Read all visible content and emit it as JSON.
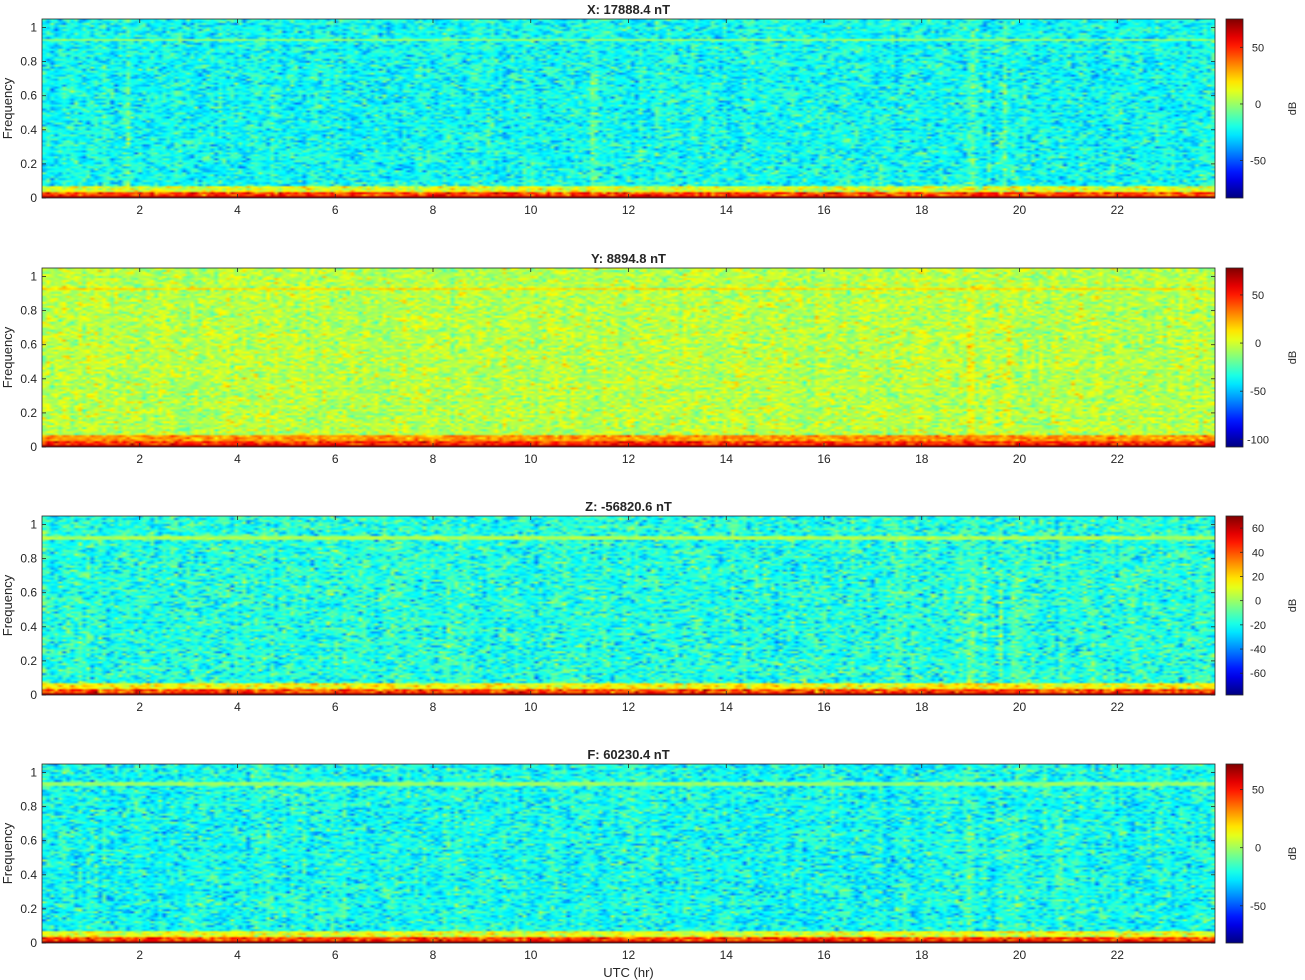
{
  "chart_data": [
    {
      "type": "heatmap",
      "title": "X: 17888.4 nT",
      "xlabel": "",
      "ylabel": "Frequency",
      "xlim": [
        0,
        24
      ],
      "ylim": [
        0,
        1.05
      ],
      "xticks": [
        2,
        4,
        6,
        8,
        10,
        12,
        14,
        16,
        18,
        20,
        22
      ],
      "yticks": [
        0,
        0.2,
        0.4,
        0.6,
        0.8,
        1
      ],
      "colorbar": {
        "label": "dB",
        "range": [
          -83,
          75
        ],
        "ticks": [
          -50,
          0,
          50
        ]
      },
      "pattern": {
        "base_level": -22,
        "bottom_band_max": 75,
        "tone_frequency": 0.925,
        "bright_times": [
          1.75,
          11.3,
          19.0,
          19.4,
          19.7
        ]
      }
    },
    {
      "type": "heatmap",
      "title": "Y: 8894.8 nT",
      "xlabel": "",
      "ylabel": "Frequency",
      "xlim": [
        0,
        24
      ],
      "ylim": [
        0,
        1.05
      ],
      "xticks": [
        2,
        4,
        6,
        8,
        10,
        12,
        14,
        16,
        18,
        20,
        22
      ],
      "yticks": [
        0,
        0.2,
        0.4,
        0.6,
        0.8,
        1
      ],
      "colorbar": {
        "label": "dB",
        "range": [
          -108,
          78
        ],
        "ticks": [
          -100,
          -50,
          0,
          50
        ]
      },
      "pattern": {
        "base_level": -5,
        "bottom_band_max": 78,
        "tone_frequency": 0.925,
        "bright_times": [
          11.5,
          19.0,
          19.4,
          19.8
        ]
      }
    },
    {
      "type": "heatmap",
      "title": "Z: -56820.6 nT",
      "xlabel": "",
      "ylabel": "Frequency",
      "xlim": [
        0,
        24
      ],
      "ylim": [
        0,
        1.05
      ],
      "xticks": [
        2,
        4,
        6,
        8,
        10,
        12,
        14,
        16,
        18,
        20,
        22
      ],
      "yticks": [
        0,
        0.2,
        0.4,
        0.6,
        0.8,
        1
      ],
      "colorbar": {
        "label": "dB",
        "range": [
          -78,
          70
        ],
        "ticks": [
          -60,
          -40,
          -20,
          0,
          20,
          40,
          60
        ]
      },
      "pattern": {
        "base_level": -18,
        "bottom_band_max": 70,
        "tone_frequency": 0.92,
        "bright_times": [
          19.0,
          19.3,
          19.6,
          19.9
        ]
      }
    },
    {
      "type": "heatmap",
      "title": "F: 60230.4 nT",
      "xlabel": "UTC (hr)",
      "ylabel": "Frequency",
      "xlim": [
        0,
        24
      ],
      "ylim": [
        0,
        1.05
      ],
      "xticks": [
        2,
        4,
        6,
        8,
        10,
        12,
        14,
        16,
        18,
        20,
        22
      ],
      "yticks": [
        0,
        0.2,
        0.4,
        0.6,
        0.8,
        1
      ],
      "colorbar": {
        "label": "dB",
        "range": [
          -82,
          72
        ],
        "ticks": [
          -50,
          0,
          50
        ]
      },
      "pattern": {
        "base_level": -22,
        "bottom_band_max": 72,
        "tone_frequency": 0.935,
        "bright_times": [
          4.6,
          19.0,
          19.3,
          19.6,
          19.9,
          20.8
        ]
      }
    }
  ]
}
